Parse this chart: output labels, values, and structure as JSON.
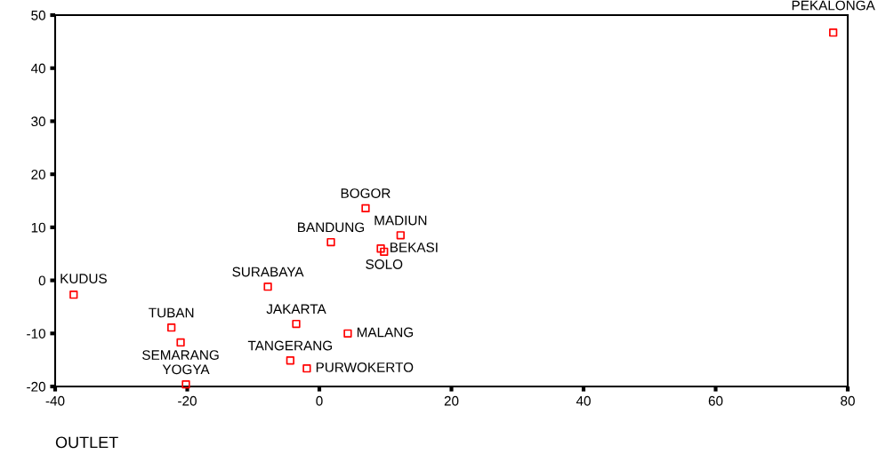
{
  "chart_data": {
    "type": "scatter",
    "series": [
      {
        "color": "#ff0000",
        "marker": "square",
        "x": [
          77.8,
          7.0,
          1.75,
          12.3,
          9.3,
          9.8,
          -7.8,
          -37.2,
          -3.5,
          4.3,
          -22.4,
          -21.0,
          -4.4,
          -1.9,
          -20.2
        ],
        "values": [
          46.7,
          13.6,
          7.2,
          8.5,
          6.0,
          5.4,
          -1.2,
          -2.7,
          -8.2,
          -10.0,
          -8.9,
          -11.7,
          -15.1,
          -16.6,
          -19.6
        ]
      }
    ],
    "annotations": [
      {
        "text": "PEKALONGA",
        "x": 77.8,
        "y": 46.7
      },
      {
        "text": "BOGOR",
        "x": 7.0,
        "y": 13.6
      },
      {
        "text": "BANDUNG",
        "x": 1.75,
        "y": 7.2
      },
      {
        "text": "MADIUN",
        "x": 12.3,
        "y": 8.5
      },
      {
        "text": "BEKASI",
        "x": 9.3,
        "y": 6.0
      },
      {
        "text": "SOLO",
        "x": 9.8,
        "y": 5.4
      },
      {
        "text": "SURABAYA",
        "x": -7.8,
        "y": -1.2
      },
      {
        "text": "KUDUS",
        "x": -37.2,
        "y": -2.7
      },
      {
        "text": "JAKARTA",
        "x": -3.5,
        "y": -8.2
      },
      {
        "text": "MALANG",
        "x": 4.3,
        "y": -10.0
      },
      {
        "text": "TUBAN",
        "x": -22.4,
        "y": -8.9
      },
      {
        "text": "SEMARANG",
        "x": -21.0,
        "y": -11.7
      },
      {
        "text": "TANGERANG",
        "x": -4.4,
        "y": -15.1
      },
      {
        "text": "PURWOKERTO",
        "x": -1.9,
        "y": -16.6
      },
      {
        "text": "YOGYA",
        "x": -20.2,
        "y": -19.6
      },
      "OUTLET"
    ],
    "xlim": [
      -40,
      80
    ],
    "xticks": [
      -40,
      -20,
      0,
      20,
      40,
      60,
      80
    ],
    "ylim": [
      -20,
      50
    ],
    "yticks": [
      -20,
      -10,
      0,
      10,
      20,
      30,
      40,
      50
    ],
    "grid": false,
    "legend": false
  }
}
